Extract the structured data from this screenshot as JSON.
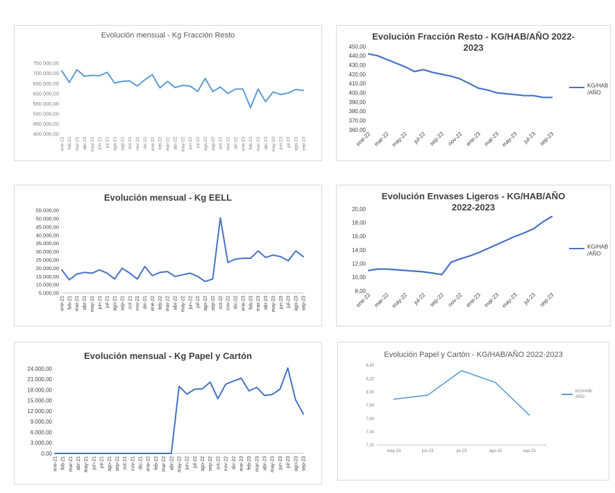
{
  "accent_color": "#4472c4",
  "light_accent_color": "#5b9bd5",
  "chart_data": [
    {
      "type": "line",
      "title": "Evolución mensual - Kg Fracción Resto",
      "categories": [
        "ene-21",
        "feb-21",
        "mar-21",
        "abr-21",
        "may-21",
        "jun-21",
        "jul-21",
        "ago-21",
        "sep-21",
        "oct-21",
        "nov-21",
        "dic-21",
        "ene-22",
        "feb-22",
        "mar-22",
        "abr-22",
        "may-22",
        "jun-22",
        "jul-22",
        "ago-22",
        "sep-22",
        "oct-22",
        "nov-22",
        "dic-22",
        "ene-23",
        "feb-23",
        "mar-23",
        "abr-23",
        "may-23",
        "jun-23",
        "jul-23",
        "ago-23",
        "sep-23"
      ],
      "series": [
        {
          "values": [
            712000,
            655000,
            718000,
            685000,
            690000,
            688000,
            705000,
            652000,
            660000,
            663000,
            637000,
            668000,
            693000,
            628000,
            660000,
            630000,
            640000,
            637000,
            610000,
            675000,
            610000,
            632000,
            600000,
            622000,
            622000,
            530000,
            622000,
            560000,
            608000,
            595000,
            603000,
            620000,
            615000
          ]
        }
      ],
      "ylim": [
        400000,
        750000
      ],
      "yticks": [
        "400.000,00",
        "450.000,00",
        "500.000,00",
        "550.000,00",
        "600.000,00",
        "650.000,00",
        "700.000,00",
        "750.000,00"
      ],
      "grid": false
    },
    {
      "type": "line",
      "title": "Evolución Fracción Resto - KG/HAB/AÑO 2022-2023",
      "categories": [
        "ene-22",
        "feb-22",
        "mar-22",
        "abr-22",
        "may-22",
        "jun-22",
        "jul-22",
        "ago-22",
        "sep-22",
        "oct-22",
        "nov-22",
        "dic-22",
        "ene-23",
        "feb-23",
        "mar-23",
        "abr-23",
        "may-23",
        "jun-23",
        "jul-23",
        "ago-23",
        "sep-23"
      ],
      "xticklabels": [
        "ene-22",
        "",
        "mar-22",
        "",
        "may-22",
        "",
        "jul-22",
        "",
        "sep-22",
        "",
        "nov-22",
        "",
        "ene-23",
        "",
        "mar-23",
        "",
        "may-23",
        "",
        "jul-23",
        "",
        "sep-23"
      ],
      "series": [
        {
          "name": "KG/HAB\n/AÑO",
          "values": [
            442,
            440,
            436,
            432,
            428,
            423,
            425,
            422,
            420,
            418,
            415,
            410,
            405,
            403,
            400,
            399,
            398,
            397,
            397,
            395,
            395
          ]
        }
      ],
      "ylim": [
        360,
        450
      ],
      "yticks": [
        "360,00",
        "370,00",
        "380,00",
        "390,00",
        "400,00",
        "410,00",
        "420,00",
        "430,00",
        "440,00",
        "450,00"
      ],
      "legend": "right",
      "grid": false
    },
    {
      "type": "line",
      "title": "Evolución mensual - Kg EELL",
      "categories": [
        "ene-21",
        "feb-21",
        "mar-21",
        "abr-21",
        "may-21",
        "jun-21",
        "jul-21",
        "ago-21",
        "sep-21",
        "oct-21",
        "nov-21",
        "dic-21",
        "ene-22",
        "feb-22",
        "mar-22",
        "abr-22",
        "may-22",
        "jun-22",
        "jul-22",
        "ago-22",
        "sep-22",
        "oct-22",
        "nov-22",
        "dic-22",
        "ene-23",
        "feb-23",
        "mar-23",
        "abr-23",
        "may-23",
        "jun-23",
        "jul-23",
        "ago-23",
        "sep-23"
      ],
      "series": [
        {
          "values": [
            19000,
            13000,
            16500,
            17500,
            17000,
            19000,
            17000,
            13500,
            20000,
            17000,
            13500,
            21000,
            15500,
            17500,
            18000,
            15000,
            16000,
            17000,
            15000,
            12000,
            13500,
            50500,
            23500,
            25500,
            26000,
            26000,
            30500,
            26500,
            28000,
            27000,
            24500,
            30500,
            27000
          ]
        }
      ],
      "ylim": [
        5000,
        55000
      ],
      "yticks": [
        "5.000,00",
        "10.000,00",
        "15.000,00",
        "20.000,00",
        "25.000,00",
        "30.000,00",
        "35.000,00",
        "40.000,00",
        "45.000,00",
        "50.000,00",
        "55.000,00"
      ],
      "grid": false
    },
    {
      "type": "line",
      "title": "Evolución Envases Ligeros - KG/HAB/AÑO 2022-2023",
      "categories": [
        "ene-22",
        "feb-22",
        "mar-22",
        "abr-22",
        "may-22",
        "jun-22",
        "jul-22",
        "ago-22",
        "sep-22",
        "oct-22",
        "nov-22",
        "dic-22",
        "ene-23",
        "feb-23",
        "mar-23",
        "abr-23",
        "may-23",
        "jun-23",
        "jul-23",
        "ago-23",
        "sep-23"
      ],
      "xticklabels": [
        "ene-22",
        "",
        "mar-22",
        "",
        "may-22",
        "",
        "jul-22",
        "",
        "sep-22",
        "",
        "nov-22",
        "",
        "ene-23",
        "",
        "mar-23",
        "",
        "may-23",
        "",
        "jul-23",
        "",
        "sep-23"
      ],
      "series": [
        {
          "name": "KG/HAB\n/AÑO",
          "values": [
            11.0,
            11.2,
            11.2,
            11.1,
            11.0,
            10.9,
            10.8,
            10.6,
            10.4,
            12.2,
            12.7,
            13.1,
            13.6,
            14.2,
            14.8,
            15.4,
            16.0,
            16.5,
            17.1,
            18.1,
            18.9
          ]
        }
      ],
      "ylim": [
        8,
        20
      ],
      "yticks": [
        "8,00",
        "10,00",
        "12,00",
        "14,00",
        "16,00",
        "18,00",
        "20,00"
      ],
      "legend": "right",
      "grid": false
    },
    {
      "type": "line",
      "title": "Evolución mensual - Kg Papel y Cartón",
      "categories": [
        "ene-21",
        "feb-21",
        "mar-21",
        "abr-21",
        "may-21",
        "jun-21",
        "jul-21",
        "ago-21",
        "sep-21",
        "oct-21",
        "nov-21",
        "dic-21",
        "ene-22",
        "feb-22",
        "mar-22",
        "abr-22",
        "may-22",
        "jun-22",
        "jul-22",
        "ago-22",
        "sep-22",
        "oct-22",
        "nov-22",
        "dic-22",
        "ene-23",
        "feb-23",
        "mar-23",
        "abr-23",
        "may-23",
        "jun-23",
        "jul-23",
        "ago-23",
        "sep-23"
      ],
      "series": [
        {
          "values": [
            0,
            0,
            0,
            0,
            0,
            0,
            0,
            0,
            0,
            0,
            0,
            0,
            0,
            0,
            0,
            0,
            19000,
            16800,
            18200,
            18300,
            20200,
            15500,
            19600,
            20500,
            21300,
            17700,
            18700,
            16400,
            16700,
            18200,
            24200,
            15200,
            11200
          ]
        }
      ],
      "ylim": [
        0,
        24000
      ],
      "yticks": [
        "0,00",
        "3.000,00",
        "6.000,00",
        "9.000,00",
        "12.000,00",
        "15.000,00",
        "18.000,00",
        "21.000,00",
        "24.000,00"
      ],
      "grid": false
    },
    {
      "type": "line",
      "title": "Evolución Papel y Cartón - KG/HAB/AÑO 2022-2023",
      "categories": [
        "may-23",
        "jun-23",
        "jul-23",
        "ago-23",
        "sep-23"
      ],
      "series": [
        {
          "name": "KG/HAB/\nAÑO",
          "values": [
            7.89,
            7.95,
            8.32,
            8.14,
            7.65
          ]
        }
      ],
      "ylim": [
        7.2,
        8.4
      ],
      "yticks": [
        "7,20",
        "7,40",
        "7,60",
        "7,80",
        "8,00",
        "8,20",
        "8,40"
      ],
      "legend": "right",
      "grid": false
    }
  ]
}
